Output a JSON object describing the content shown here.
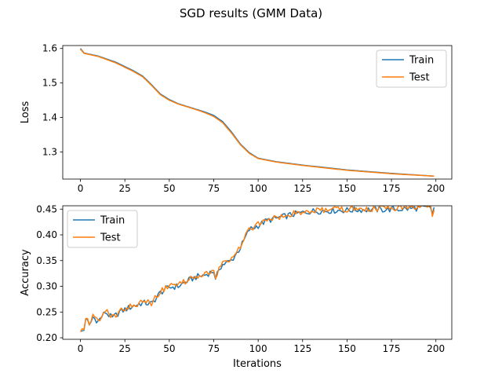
{
  "figure": {
    "title": "SGD results (GMM Data)"
  },
  "colors": {
    "train": "#1f77b4",
    "test": "#ff7f0e"
  },
  "chart_data": [
    {
      "type": "line",
      "title": "",
      "xlabel": "",
      "ylabel": "Loss",
      "xlim": [
        -9.95,
        208.95
      ],
      "ylim": [
        1.2215,
        1.6085
      ],
      "xticks": [
        0,
        25,
        50,
        75,
        100,
        125,
        150,
        175,
        200
      ],
      "yticks": [
        1.3,
        1.4,
        1.5,
        1.6
      ],
      "ytick_labels": [
        "1.3",
        "1.4",
        "1.5",
        "1.6"
      ],
      "legend": {
        "position": "upper right",
        "entries": [
          "Train",
          "Test"
        ]
      },
      "x_range": [
        0,
        199
      ],
      "series": [
        {
          "name": "Train",
          "color": "#1f77b4",
          "keypoints": [
            [
              0,
              1.6
            ],
            [
              2,
              1.587
            ],
            [
              10,
              1.578
            ],
            [
              20,
              1.56
            ],
            [
              30,
              1.535
            ],
            [
              35,
              1.52
            ],
            [
              40,
              1.495
            ],
            [
              45,
              1.468
            ],
            [
              50,
              1.452
            ],
            [
              55,
              1.44
            ],
            [
              60,
              1.432
            ],
            [
              65,
              1.424
            ],
            [
              70,
              1.416
            ],
            [
              75,
              1.406
            ],
            [
              80,
              1.388
            ],
            [
              85,
              1.358
            ],
            [
              90,
              1.323
            ],
            [
              95,
              1.298
            ],
            [
              100,
              1.282
            ],
            [
              110,
              1.272
            ],
            [
              125,
              1.262
            ],
            [
              150,
              1.248
            ],
            [
              175,
              1.238
            ],
            [
              199,
              1.23
            ]
          ]
        },
        {
          "name": "Test",
          "color": "#ff7f0e",
          "keypoints": [
            [
              0,
              1.598
            ],
            [
              2,
              1.586
            ],
            [
              10,
              1.577
            ],
            [
              20,
              1.558
            ],
            [
              30,
              1.533
            ],
            [
              35,
              1.518
            ],
            [
              40,
              1.493
            ],
            [
              45,
              1.466
            ],
            [
              50,
              1.45
            ],
            [
              55,
              1.439
            ],
            [
              60,
              1.431
            ],
            [
              65,
              1.423
            ],
            [
              70,
              1.414
            ],
            [
              75,
              1.403
            ],
            [
              80,
              1.385
            ],
            [
              85,
              1.355
            ],
            [
              90,
              1.321
            ],
            [
              95,
              1.296
            ],
            [
              100,
              1.281
            ],
            [
              110,
              1.271
            ],
            [
              125,
              1.261
            ],
            [
              150,
              1.247
            ],
            [
              175,
              1.237
            ],
            [
              199,
              1.23
            ]
          ]
        }
      ]
    },
    {
      "type": "line",
      "title": "",
      "xlabel": "Iterations",
      "ylabel": "Accuracy",
      "xlim": [
        -9.95,
        208.95
      ],
      "ylim": [
        0.197,
        0.4565
      ],
      "xticks": [
        0,
        25,
        50,
        75,
        100,
        125,
        150,
        175,
        200
      ],
      "yticks": [
        0.2,
        0.25,
        0.3,
        0.35,
        0.4,
        0.45
      ],
      "ytick_labels": [
        "0.20",
        "0.25",
        "0.30",
        "0.35",
        "0.40",
        "0.45"
      ],
      "legend": {
        "position": "upper left",
        "entries": [
          "Train",
          "Test"
        ]
      },
      "x_range": [
        0,
        199
      ],
      "noise": 0.006,
      "series": [
        {
          "name": "Train",
          "color": "#1f77b4",
          "keypoints": [
            [
              0,
              0.21
            ],
            [
              2,
              0.215
            ],
            [
              3,
              0.24
            ],
            [
              5,
              0.222
            ],
            [
              7,
              0.24
            ],
            [
              10,
              0.232
            ],
            [
              14,
              0.25
            ],
            [
              18,
              0.238
            ],
            [
              22,
              0.25
            ],
            [
              25,
              0.255
            ],
            [
              30,
              0.262
            ],
            [
              35,
              0.268
            ],
            [
              40,
              0.266
            ],
            [
              45,
              0.288
            ],
            [
              50,
              0.298
            ],
            [
              55,
              0.3
            ],
            [
              60,
              0.31
            ],
            [
              65,
              0.318
            ],
            [
              70,
              0.322
            ],
            [
              75,
              0.33
            ],
            [
              76,
              0.31
            ],
            [
              78,
              0.335
            ],
            [
              80,
              0.342
            ],
            [
              85,
              0.35
            ],
            [
              90,
              0.375
            ],
            [
              95,
              0.41
            ],
            [
              100,
              0.418
            ],
            [
              105,
              0.428
            ],
            [
              110,
              0.432
            ],
            [
              120,
              0.44
            ],
            [
              125,
              0.443
            ],
            [
              130,
              0.446
            ],
            [
              140,
              0.447
            ],
            [
              150,
              0.448
            ],
            [
              160,
              0.449
            ],
            [
              170,
              0.449
            ],
            [
              180,
              0.45
            ],
            [
              190,
              0.452
            ],
            [
              197,
              0.452
            ],
            [
              198,
              0.442
            ],
            [
              199,
              0.452
            ]
          ]
        },
        {
          "name": "Test",
          "color": "#ff7f0e",
          "keypoints": [
            [
              0,
              0.212
            ],
            [
              2,
              0.217
            ],
            [
              3,
              0.242
            ],
            [
              5,
              0.224
            ],
            [
              7,
              0.242
            ],
            [
              10,
              0.234
            ],
            [
              14,
              0.252
            ],
            [
              18,
              0.24
            ],
            [
              22,
              0.252
            ],
            [
              25,
              0.257
            ],
            [
              30,
              0.264
            ],
            [
              35,
              0.27
            ],
            [
              40,
              0.268
            ],
            [
              45,
              0.29
            ],
            [
              50,
              0.3
            ],
            [
              55,
              0.302
            ],
            [
              60,
              0.312
            ],
            [
              65,
              0.32
            ],
            [
              70,
              0.324
            ],
            [
              75,
              0.332
            ],
            [
              76,
              0.312
            ],
            [
              78,
              0.337
            ],
            [
              80,
              0.344
            ],
            [
              85,
              0.352
            ],
            [
              90,
              0.377
            ],
            [
              95,
              0.412
            ],
            [
              100,
              0.42
            ],
            [
              105,
              0.43
            ],
            [
              110,
              0.434
            ],
            [
              120,
              0.442
            ],
            [
              125,
              0.445
            ],
            [
              130,
              0.448
            ],
            [
              140,
              0.449
            ],
            [
              150,
              0.45
            ],
            [
              160,
              0.451
            ],
            [
              170,
              0.451
            ],
            [
              180,
              0.452
            ],
            [
              190,
              0.454
            ],
            [
              197,
              0.454
            ],
            [
              198,
              0.44
            ],
            [
              199,
              0.454
            ]
          ]
        }
      ]
    }
  ]
}
